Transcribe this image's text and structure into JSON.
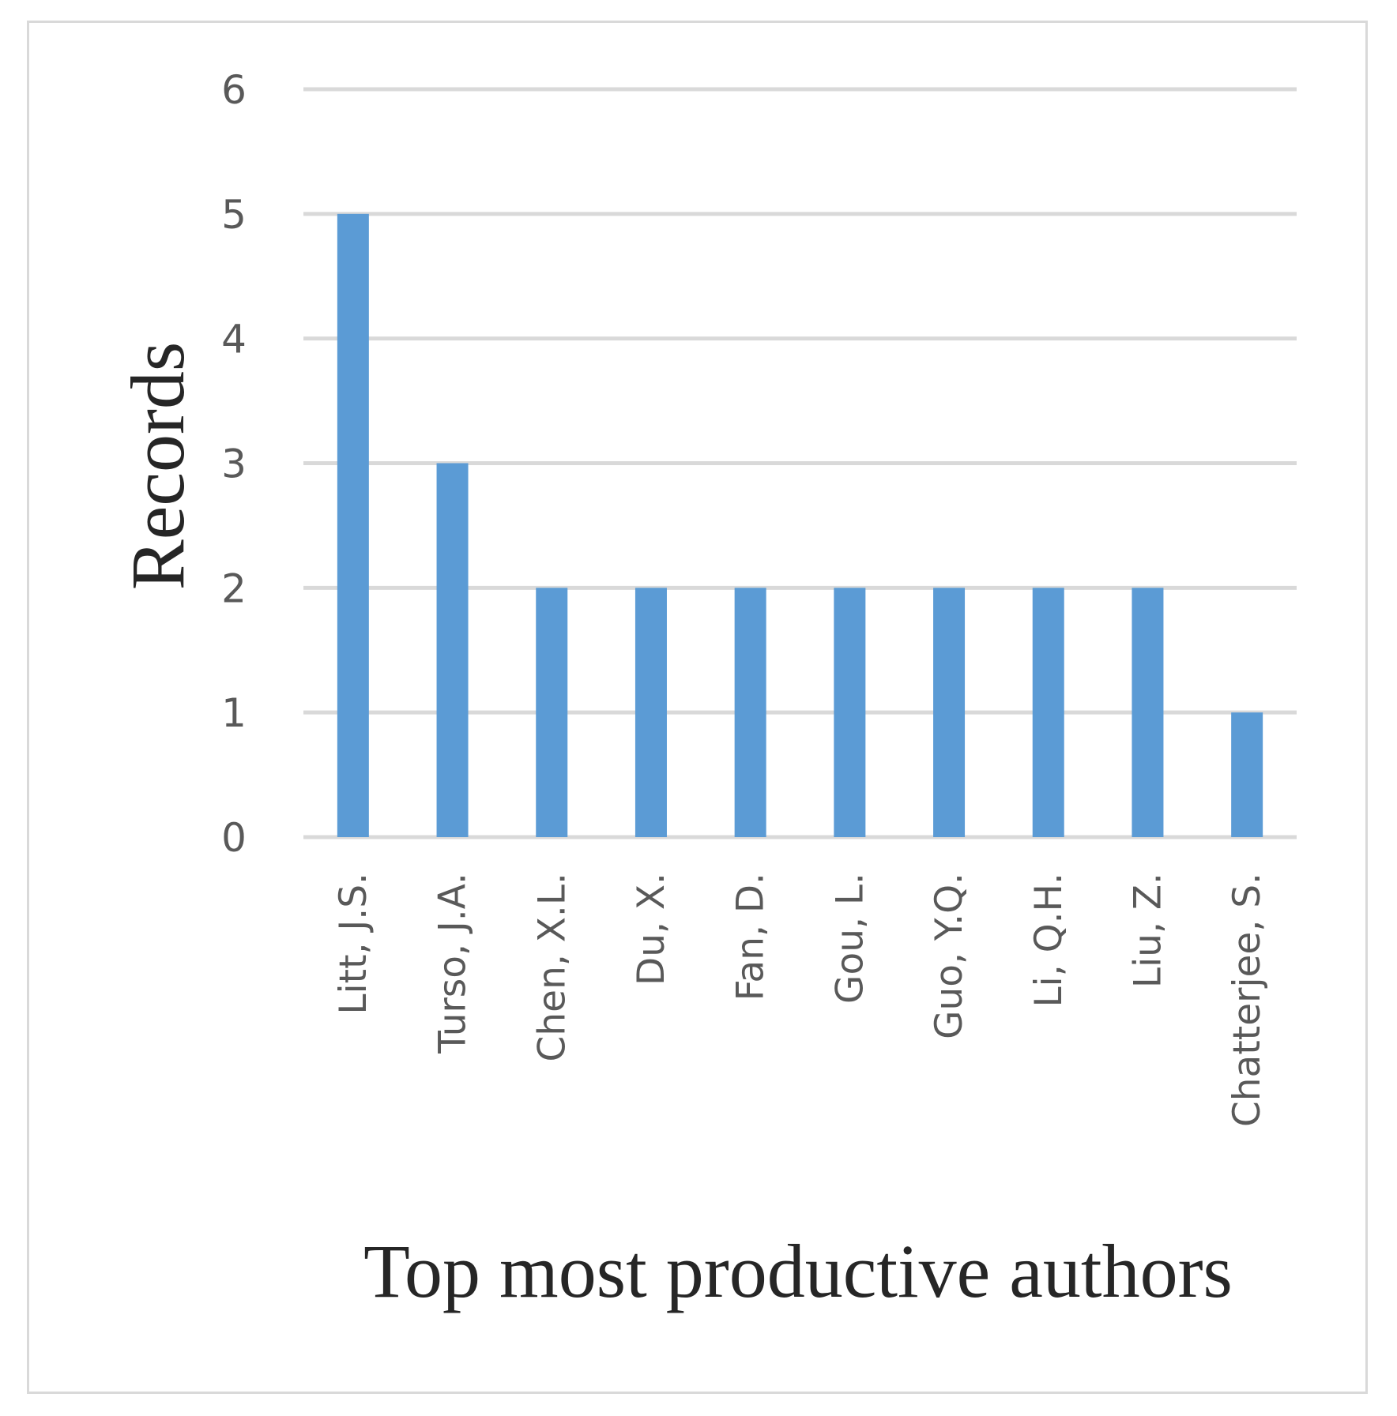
{
  "chart_data": {
    "type": "bar",
    "title": "",
    "xlabel": "Top most productive authors",
    "ylabel": "Records",
    "categories": [
      "Litt, J.S.",
      "Turso, J.A.",
      "Chen, X.L.",
      "Du, X.",
      "Fan, D.",
      "Gou, L.",
      "Guo, Y.Q.",
      "Li, Q.H.",
      "Liu, Z.",
      "Chatterjee, S."
    ],
    "values": [
      5,
      3,
      2,
      2,
      2,
      2,
      2,
      2,
      2,
      1
    ],
    "ylim": [
      0,
      6
    ],
    "yticks": [
      0,
      1,
      2,
      3,
      4,
      5,
      6
    ],
    "grid": true,
    "legend": "none",
    "colors": {
      "bar": "#5b9bd5",
      "grid": "#d9d9d9",
      "tick_text": "#595959",
      "axis_title": "#262626",
      "frame": "#d9d9d9"
    }
  }
}
